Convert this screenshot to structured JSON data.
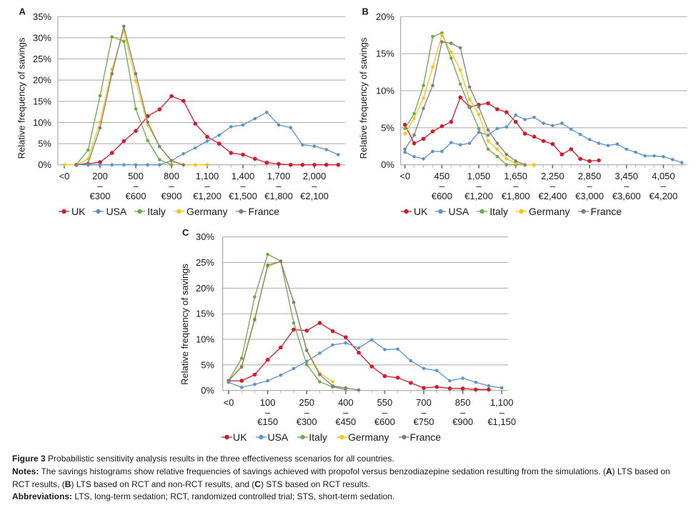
{
  "chart_data": [
    {
      "panel": "A",
      "type": "line",
      "title": "",
      "xlabel": "",
      "ylabel": "Relative frequency of savings",
      "ylim": [
        0,
        35
      ],
      "yticks": [
        0,
        5,
        10,
        15,
        20,
        25,
        30,
        35
      ],
      "ytick_labels": [
        "0%",
        "5%",
        "10%",
        "15%",
        "20%",
        "25%",
        "30%",
        "35%"
      ],
      "grid": true,
      "legend_position": "bottom-left",
      "value_unit": "percent",
      "categories": [
        "<0",
        "",
        "",
        "200 – €300",
        "",
        "",
        "500 – €600",
        "",
        "",
        "800 – €900",
        "",
        "",
        "1,100 – €1,200",
        "",
        "",
        "1,400 – €1,500",
        "",
        "",
        "1,700 – €1,800",
        "",
        "",
        "2,000 – €2,100",
        "",
        ""
      ],
      "series": [
        {
          "name": "UK",
          "color": "#d7192b",
          "values": [
            null,
            0,
            0.2,
            0.6,
            2.8,
            5.6,
            8.0,
            11.5,
            13.1,
            16.2,
            15.1,
            9.7,
            6.6,
            5.0,
            2.8,
            2.4,
            1.4,
            0.5,
            0.2,
            0,
            0,
            0,
            0,
            0
          ]
        },
        {
          "name": "USA",
          "color": "#5b93cf",
          "values": [
            null,
            0,
            0,
            0,
            0,
            0,
            0,
            0,
            0,
            1.0,
            2.6,
            4.0,
            5.6,
            7.0,
            9.0,
            9.4,
            10.9,
            12.4,
            9.4,
            8.8,
            4.7,
            4.4,
            3.6,
            2.4
          ]
        },
        {
          "name": "Italy",
          "color": "#6aab47",
          "values": [
            null,
            0,
            3.5,
            16.3,
            30.2,
            29.2,
            13.2,
            5.7,
            1.2,
            0
          ]
        },
        {
          "name": "Germany",
          "color": "#f7c316",
          "values": [
            0,
            0,
            1.4,
            10.1,
            22.6,
            31.7,
            19.8,
            9.4,
            4.3,
            0.8,
            0,
            0,
            0
          ]
        },
        {
          "name": "France",
          "color": "#7f7f7f",
          "values": [
            null,
            0,
            0.4,
            8.7,
            21.5,
            32.7,
            21.5,
            10.1,
            4.3,
            1.0,
            0
          ]
        }
      ]
    },
    {
      "panel": "B",
      "type": "line",
      "title": "",
      "xlabel": "",
      "ylabel": "Relative frequency of savings",
      "ylim": [
        0,
        20
      ],
      "yticks": [
        0,
        5,
        10,
        15,
        20
      ],
      "ytick_labels": [
        "0%",
        "5%",
        "10%",
        "15%",
        "20%"
      ],
      "grid": true,
      "legend_position": "bottom-left",
      "value_unit": "percent",
      "categories": [
        "<0",
        "",
        "",
        "",
        "450 – €600",
        "",
        "",
        "",
        "1,050 – €1,200",
        "",
        "",
        "",
        "1,650 – €1,800",
        "",
        "",
        "",
        "2,250 – €2,400",
        "",
        "",
        "",
        "2,850 – €3,000",
        "",
        "",
        "",
        "3,450 – €3,600",
        "",
        "",
        "",
        "4,050 – €4,200",
        "",
        ""
      ],
      "series": [
        {
          "name": "UK",
          "color": "#d7192b",
          "values": [
            5.4,
            2.9,
            3.5,
            4.5,
            5.2,
            5.8,
            9.1,
            7.8,
            8.1,
            8.3,
            7.5,
            7.1,
            5.8,
            4.2,
            3.8,
            3.2,
            2.8,
            1.4,
            2.1,
            0.8,
            0.5,
            0.6
          ]
        },
        {
          "name": "USA",
          "color": "#5b93cf",
          "values": [
            1.7,
            1.1,
            0.8,
            1.8,
            1.8,
            3.0,
            2.7,
            2.9,
            4.4,
            4.0,
            4.9,
            5.1,
            6.7,
            6.1,
            6.4,
            5.6,
            5.3,
            5.6,
            4.8,
            4.1,
            3.4,
            2.9,
            2.6,
            2.8,
            2.1,
            1.7,
            1.2,
            1.2,
            1.1,
            0.7,
            0.3
          ]
        },
        {
          "name": "Italy",
          "color": "#6aab47",
          "values": [
            4.9,
            6.9,
            10.7,
            17.3,
            17.8,
            14.4,
            10.9,
            7.8,
            4.9,
            2.1,
            1.1,
            0,
            0,
            0,
            0
          ]
        },
        {
          "name": "Germany",
          "color": "#f7c316",
          "values": [
            4.2,
            6.3,
            9.0,
            13.2,
            17.5,
            15.2,
            12.8,
            8.8,
            6.8,
            3.2,
            2.1,
            0.8,
            0.2,
            0,
            0
          ]
        },
        {
          "name": "France",
          "color": "#7f7f7f",
          "values": [
            2.1,
            4.0,
            7.6,
            10.7,
            16.6,
            16.4,
            15.8,
            10.5,
            7.8,
            4.7,
            2.9,
            1.4,
            0.5,
            0
          ]
        }
      ]
    },
    {
      "panel": "C",
      "type": "line",
      "title": "",
      "xlabel": "",
      "ylabel": "Relative frequency of savings",
      "ylim": [
        0,
        30
      ],
      "yticks": [
        0,
        5,
        10,
        15,
        20,
        25,
        30
      ],
      "ytick_labels": [
        "0%",
        "5%",
        "10%",
        "15%",
        "20%",
        "25%",
        "30%"
      ],
      "grid": true,
      "legend_position": "bottom-left",
      "value_unit": "percent",
      "categories": [
        "<0",
        "",
        "",
        "100 – €150",
        "",
        "",
        "250 – €300",
        "",
        "",
        "400 – €450",
        "",
        "",
        "550 – €600",
        "",
        "",
        "700 – €750",
        "",
        "",
        "850 – €900",
        "",
        "",
        "1,100 – €1,150"
      ],
      "series": [
        {
          "name": "UK",
          "color": "#d7192b",
          "values": [
            1.9,
            1.9,
            3.1,
            6.0,
            8.4,
            11.9,
            11.7,
            13.2,
            11.6,
            10.4,
            7.4,
            4.7,
            2.8,
            2.5,
            1.5,
            0.5,
            0.7,
            0.4,
            0.4,
            0.2,
            0.2
          ]
        },
        {
          "name": "USA",
          "color": "#5b93cf",
          "values": [
            1.6,
            0.6,
            1.2,
            1.9,
            3.0,
            4.3,
            5.7,
            7.3,
            8.9,
            9.3,
            8.3,
            9.9,
            8.0,
            8.1,
            5.8,
            4.3,
            3.9,
            1.9,
            2.4,
            1.6,
            0.9,
            0.5
          ]
        },
        {
          "name": "Italy",
          "color": "#6aab47",
          "values": [
            1.9,
            6.3,
            18.3,
            26.6,
            25.3,
            13.2,
            5.1,
            1.7,
            0.7,
            0.2
          ]
        },
        {
          "name": "Germany",
          "color": "#f7c316",
          "values": [
            1.9,
            4.8,
            14.1,
            24.2,
            25.2,
            17.3,
            8.0,
            3.4,
            1.7
          ]
        },
        {
          "name": "France",
          "color": "#7f7f7f",
          "values": [
            1.9,
            4.6,
            13.8,
            24.5,
            25.2,
            17.2,
            7.8,
            3.1,
            0.9,
            0.5,
            0.1
          ]
        }
      ]
    }
  ],
  "caption": {
    "figure_label": "Figure 3",
    "title": " Probabilistic sensitivity analysis results in the three effectiveness scenarios for all countries.",
    "notes_label": "Notes:",
    "notes_segments": [
      " The savings histograms show relative frequencies of savings achieved with propofol versus benzodiazepine sedation resulting from the simulations. (",
      "A",
      ") LTS based on",
      "RCT results, (",
      "B",
      ") LTS based on RCT and non-RCT results, and (",
      "C",
      ") STS based on RCT results."
    ],
    "abbreviations_label": "Abbreviations:",
    "abbreviations": " LTS, long-term sedation; RCT, randomized controlled trial; STS, short-term sedation."
  }
}
